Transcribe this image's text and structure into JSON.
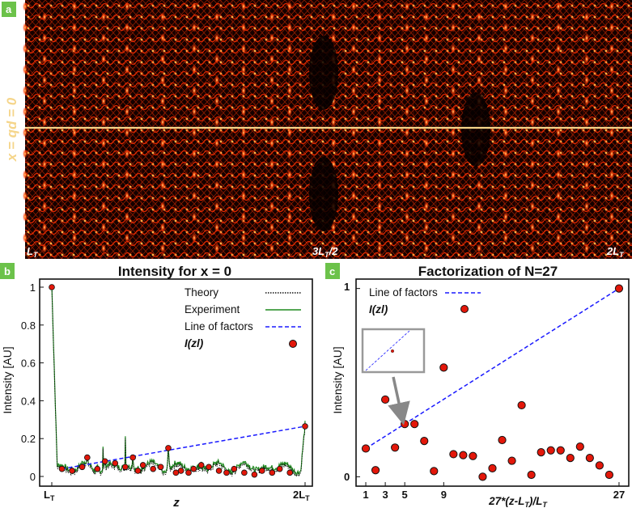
{
  "panel_a": {
    "badge": "a",
    "side_label": "x = qd = 0",
    "x_ticks": [
      "LT",
      "3LT/2",
      "2LT"
    ],
    "colors": {
      "background": "#0a0000",
      "fringe": "#ff2a00",
      "highlight": "#ffd94a",
      "marker_line": "#f5d58a",
      "badge_bg": "#6cc24a"
    }
  },
  "chart_data": [
    {
      "type": "line",
      "panel": "b",
      "badge": "b",
      "title": "Intensity for x = 0",
      "xlabel": "z",
      "ylabel": "Intensity [AU]",
      "xlim": [
        0,
        1
      ],
      "ylim": [
        0,
        1
      ],
      "x_tick_labels": [
        "LT",
        "2LT"
      ],
      "y_tick_labels": [
        "0",
        "0.2",
        "0.4",
        "0.6",
        "0.8",
        "1"
      ],
      "legend": [
        "Theory",
        "Experiment",
        "Line of factors",
        "I(zl)"
      ],
      "legend_position": "top-right",
      "series": [
        {
          "name": "Line of factors",
          "points": [
            [
              0.04,
              0.04
            ],
            [
              1.0,
              0.265
            ]
          ]
        },
        {
          "name": "I(zl)",
          "points": [
            [
              0.0,
              1.0
            ],
            [
              0.04,
              0.04
            ],
            [
              0.08,
              0.03
            ],
            [
              0.12,
              0.05
            ],
            [
              0.14,
              0.1
            ],
            [
              0.18,
              0.04
            ],
            [
              0.21,
              0.08
            ],
            [
              0.25,
              0.07
            ],
            [
              0.29,
              0.05
            ],
            [
              0.32,
              0.1
            ],
            [
              0.34,
              0.03
            ],
            [
              0.36,
              0.06
            ],
            [
              0.4,
              0.04
            ],
            [
              0.43,
              0.05
            ],
            [
              0.46,
              0.15
            ],
            [
              0.49,
              0.02
            ],
            [
              0.51,
              0.03
            ],
            [
              0.54,
              0.02
            ],
            [
              0.56,
              0.04
            ],
            [
              0.59,
              0.06
            ],
            [
              0.62,
              0.05
            ],
            [
              0.66,
              0.03
            ],
            [
              0.69,
              0.02
            ],
            [
              0.72,
              0.04
            ],
            [
              0.76,
              0.02
            ],
            [
              0.8,
              0.01
            ],
            [
              0.83,
              0.03
            ],
            [
              0.87,
              0.02
            ],
            [
              0.9,
              0.04
            ],
            [
              0.94,
              0.02
            ],
            [
              1.0,
              0.265
            ]
          ]
        }
      ],
      "colors": {
        "theory": "#111111",
        "experiment": "#1f8a1f",
        "line_of_factors": "#1a1aff",
        "points": "#e3170a"
      }
    },
    {
      "type": "scatter",
      "panel": "c",
      "badge": "c",
      "title": "Factorization of N=27",
      "xlabel": "27*(z-LT)/LT",
      "ylabel": "Intensity [AU]",
      "xlim": [
        0,
        28
      ],
      "ylim": [
        -0.05,
        1.05
      ],
      "x_ticks": [
        1,
        3,
        5,
        9,
        27
      ],
      "y_tick_labels": [
        "0",
        "1"
      ],
      "legend": [
        "Line of factors",
        "I(zl)"
      ],
      "legend_position": "top-left",
      "inset": "zoomed view of the point at l = 5",
      "series": [
        {
          "name": "Line of factors",
          "x": [
            1,
            27
          ],
          "y": [
            0.15,
            1.0
          ]
        },
        {
          "name": "I(zl)",
          "x": [
            1,
            2,
            3,
            4,
            5,
            6,
            7,
            8,
            9,
            10,
            11,
            12,
            13,
            14,
            15,
            16,
            17,
            18,
            19,
            20,
            21,
            22,
            23,
            24,
            25,
            26,
            27
          ],
          "y": [
            0.15,
            0.035,
            0.41,
            0.155,
            0.28,
            0.28,
            0.19,
            0.03,
            0.58,
            0.12,
            0.115,
            0.11,
            0.0,
            0.045,
            0.195,
            0.085,
            0.38,
            0.01,
            0.13,
            0.14,
            0.14,
            0.1,
            0.16,
            0.1,
            0.06,
            0.01,
            1.0
          ]
        }
      ],
      "colors": {
        "line_of_factors": "#1a1aff",
        "points": "#e3170a",
        "inset_border": "#999999",
        "arrow": "#888888"
      }
    }
  ]
}
